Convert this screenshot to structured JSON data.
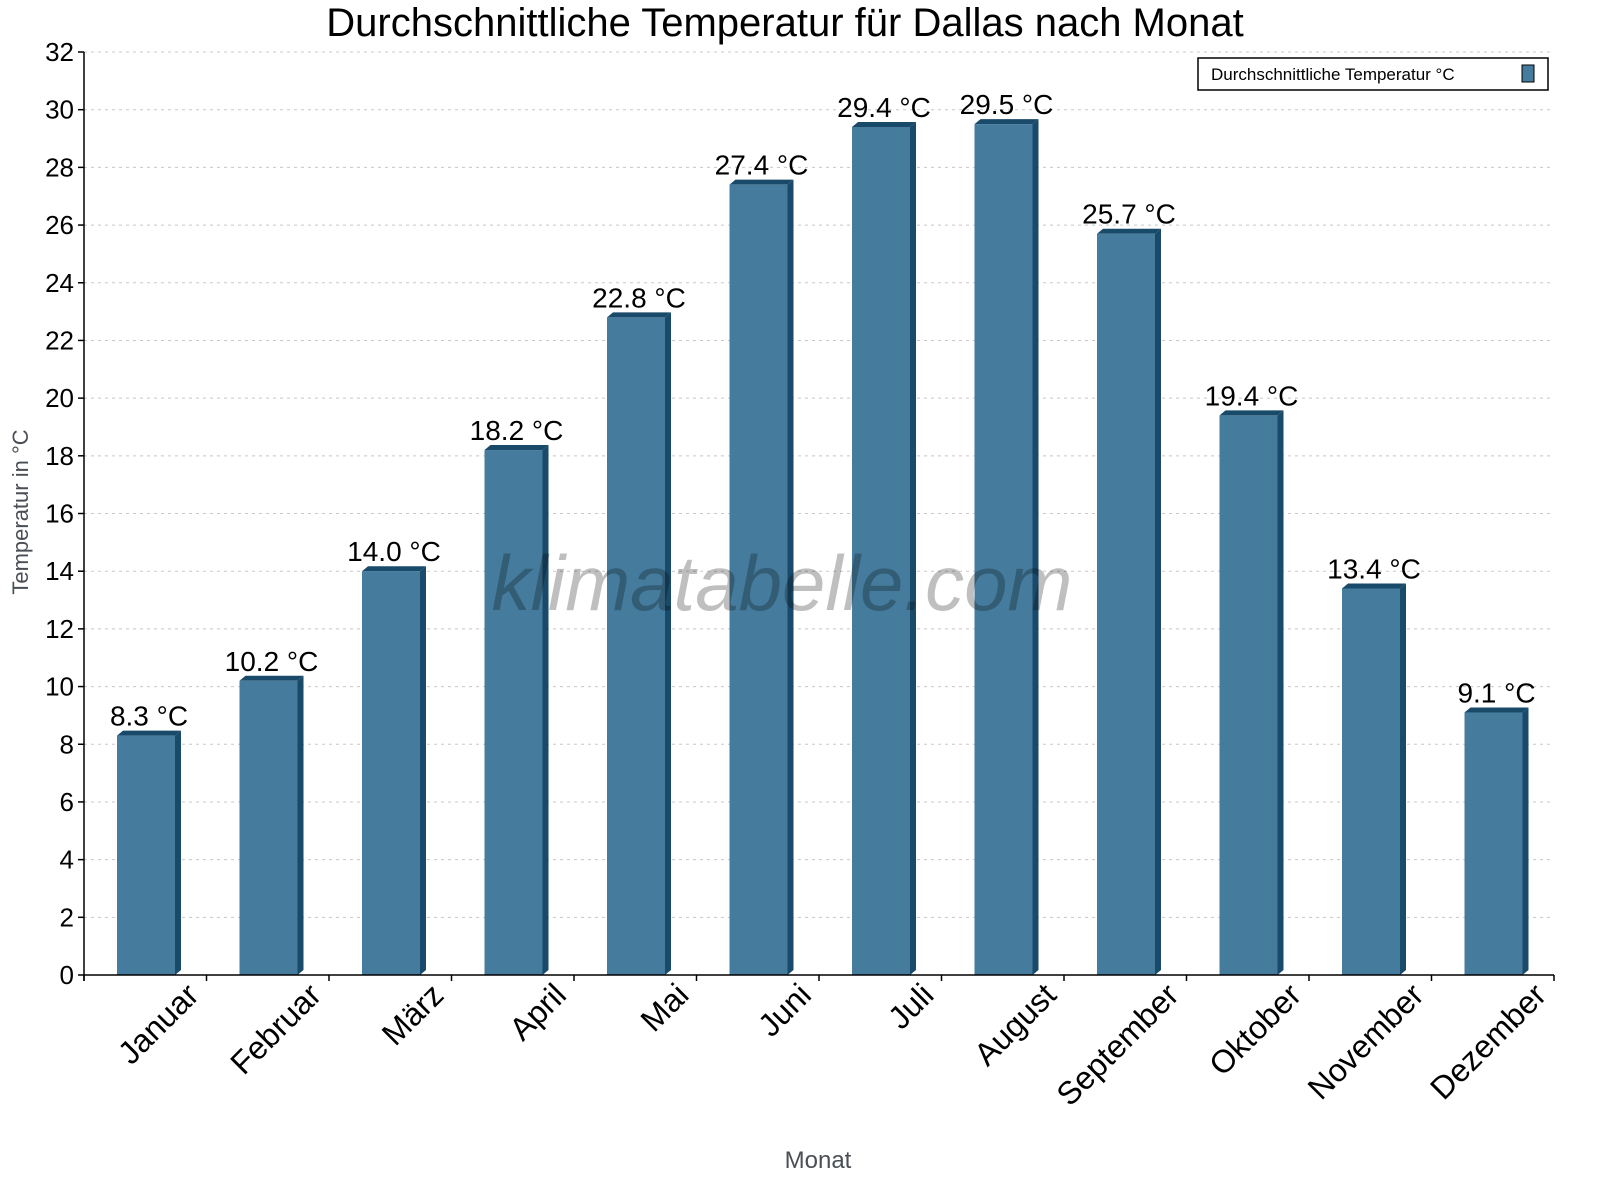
{
  "chart_data": {
    "type": "bar",
    "title": "Durchschnittliche Temperatur für Dallas nach Monat",
    "xlabel": "Monat",
    "ylabel": "Temperatur in °C",
    "ylim": [
      0,
      32
    ],
    "yticks": [
      0,
      2,
      4,
      6,
      8,
      10,
      12,
      14,
      16,
      18,
      20,
      22,
      24,
      26,
      28,
      30,
      32
    ],
    "grid": true,
    "legend_position": "top-right",
    "unit_suffix": " °C",
    "categories": [
      "Januar",
      "Februar",
      "März",
      "April",
      "Mai",
      "Juni",
      "Juli",
      "August",
      "September",
      "Oktober",
      "November",
      "Dezember"
    ],
    "series": [
      {
        "name": "Durchschnittliche Temperatur °C",
        "color": "#457b9d",
        "side_color": "#1a4a6a",
        "values": [
          8.3,
          10.2,
          14.0,
          18.2,
          22.8,
          27.4,
          29.4,
          29.5,
          25.7,
          19.4,
          13.4,
          9.1
        ]
      }
    ],
    "data_labels": [
      "8.3 °C",
      "10.2 °C",
      "14.0 °C",
      "18.2 °C",
      "22.8 °C",
      "27.4 °C",
      "29.4 °C",
      "29.5 °C",
      "25.7 °C",
      "19.4 °C",
      "13.4 °C",
      "9.1 °C"
    ]
  },
  "watermark": "klimatabelle.com"
}
